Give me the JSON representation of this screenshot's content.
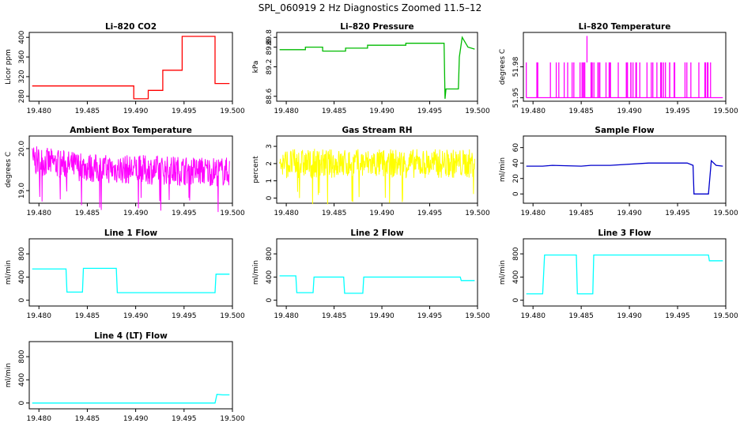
{
  "title": "SPL_060919  2 Hz Diagnostics Zoomed 11.5–12",
  "chart_data": [
    {
      "type": "line",
      "title": "Li–820 CO2",
      "ylabel": "Licor ppm",
      "color": "#ff0000",
      "xlim": [
        19.479,
        19.5
      ],
      "ylim": [
        270,
        410
      ],
      "xticks": [
        "19.480",
        "19.485",
        "19.490",
        "19.495",
        "19.500"
      ],
      "yticks": [
        "280",
        "320",
        "360",
        "400"
      ],
      "x": [
        19.4793,
        19.4898,
        19.4898,
        19.4913,
        19.4913,
        19.4928,
        19.4928,
        19.4948,
        19.4948,
        19.4982,
        19.4982,
        19.4997
      ],
      "y": [
        301,
        301,
        275,
        275,
        292,
        292,
        333,
        333,
        402,
        402,
        306,
        306
      ]
    },
    {
      "type": "line",
      "title": "Li–820 Pressure",
      "ylabel": "kPa",
      "color": "#00bb00",
      "xlim": [
        19.479,
        19.5
      ],
      "ylim": [
        88.5,
        89.9
      ],
      "xticks": [
        "19.480",
        "19.485",
        "19.490",
        "19.495",
        "19.500"
      ],
      "yticks": [
        "88.6",
        "89.2",
        "89.6",
        "89.8"
      ],
      "x": [
        19.4793,
        19.482,
        19.482,
        19.4838,
        19.4838,
        19.4862,
        19.4862,
        19.4885,
        19.4885,
        19.4925,
        19.4925,
        19.4965,
        19.4966,
        19.4967,
        19.498,
        19.4981,
        19.4984,
        19.499,
        19.4997
      ],
      "y": [
        89.55,
        89.55,
        89.6,
        89.6,
        89.52,
        89.52,
        89.58,
        89.58,
        89.64,
        89.64,
        89.68,
        89.68,
        88.55,
        88.75,
        88.75,
        89.4,
        89.8,
        89.6,
        89.56
      ]
    },
    {
      "type": "line",
      "title": "Li–820 Temperature",
      "ylabel": "degrees C",
      "color": "#ff00ff",
      "xlim": [
        19.479,
        19.5
      ],
      "ylim": [
        51.948,
        51.987
      ],
      "xticks": [
        "19.480",
        "19.485",
        "19.490",
        "19.495",
        "19.500"
      ],
      "yticks": [
        "51.95",
        "51.98",
        "51.98"
      ],
      "x": [
        19.4793,
        19.4997
      ],
      "y": [
        51.95,
        51.95
      ],
      "spikes": {
        "to": 51.97,
        "count": 64,
        "max_at": 19.4856,
        "max": 51.985
      }
    },
    {
      "type": "line",
      "title": "Ambient Box Temperature",
      "ylabel": "degrees C",
      "color": "#ff00ff",
      "xlim": [
        19.479,
        19.5
      ],
      "ylim": [
        18.7,
        20.3
      ],
      "xticks": [
        "19.480",
        "19.485",
        "19.490",
        "19.495",
        "19.500"
      ],
      "yticks": [
        "19.0",
        "20.0"
      ],
      "band": [
        [
          19.4793,
          19.72,
          0.35
        ],
        [
          19.486,
          19.52,
          0.35
        ],
        [
          19.4997,
          19.45,
          0.35
        ]
      ]
    },
    {
      "type": "line",
      "title": "Gas Stream RH",
      "ylabel": "percent",
      "color": "#ffff00",
      "xlim": [
        19.479,
        19.5
      ],
      "ylim": [
        -0.3,
        3.6
      ],
      "xticks": [
        "19.480",
        "19.485",
        "19.490",
        "19.495",
        "19.500"
      ],
      "yticks": [
        "0",
        "1",
        "2",
        "3"
      ],
      "band": [
        [
          19.4793,
          2.0,
          0.85
        ],
        [
          19.4997,
          2.0,
          0.85
        ]
      ]
    },
    {
      "type": "line",
      "title": "Sample Flow",
      "ylabel": "ml/min",
      "color": "#0000cc",
      "xlim": [
        19.479,
        19.5
      ],
      "ylim": [
        -12,
        75
      ],
      "xticks": [
        "19.480",
        "19.485",
        "19.490",
        "19.495",
        "19.500"
      ],
      "yticks": [
        "0",
        "20",
        "40",
        "60"
      ],
      "x": [
        19.4793,
        19.481,
        19.482,
        19.485,
        19.486,
        19.488,
        19.492,
        19.496,
        19.4966,
        19.4967,
        19.4982,
        19.4985,
        19.499,
        19.4997
      ],
      "y": [
        36,
        36,
        37,
        36,
        37,
        37,
        40,
        40,
        37,
        0,
        0,
        43,
        37,
        36
      ]
    },
    {
      "type": "line",
      "title": "Line 1 Flow",
      "ylabel": "ml/min",
      "color": "#00ffff",
      "xlim": [
        19.479,
        19.5
      ],
      "ylim": [
        -100,
        1060
      ],
      "xticks": [
        "19.480",
        "19.485",
        "19.490",
        "19.495",
        "19.500"
      ],
      "yticks": [
        "0",
        "400",
        "800"
      ],
      "x": [
        19.4793,
        19.4828,
        19.4829,
        19.4845,
        19.4846,
        19.488,
        19.4881,
        19.4982,
        19.4983,
        19.4997
      ],
      "y": [
        540,
        540,
        140,
        140,
        550,
        550,
        130,
        130,
        450,
        450
      ]
    },
    {
      "type": "line",
      "title": "Line 2 Flow",
      "ylabel": "ml/min",
      "color": "#00ffff",
      "xlim": [
        19.479,
        19.5
      ],
      "ylim": [
        -100,
        1060
      ],
      "xticks": [
        "19.480",
        "19.485",
        "19.490",
        "19.495",
        "19.500"
      ],
      "yticks": [
        "0",
        "400",
        "800"
      ],
      "x": [
        19.4793,
        19.481,
        19.4811,
        19.4828,
        19.4829,
        19.486,
        19.4861,
        19.488,
        19.4881,
        19.4982,
        19.4983,
        19.4997
      ],
      "y": [
        420,
        420,
        130,
        130,
        400,
        400,
        120,
        120,
        400,
        400,
        340,
        340
      ]
    },
    {
      "type": "line",
      "title": "Line 3 Flow",
      "ylabel": "ml/min",
      "color": "#00ffff",
      "xlim": [
        19.479,
        19.5
      ],
      "ylim": [
        -100,
        1060
      ],
      "xticks": [
        "19.480",
        "19.485",
        "19.490",
        "19.495",
        "19.500"
      ],
      "yticks": [
        "0",
        "400",
        "800"
      ],
      "x": [
        19.4793,
        19.481,
        19.4812,
        19.4845,
        19.4846,
        19.4862,
        19.4863,
        19.4982,
        19.4983,
        19.4997
      ],
      "y": [
        110,
        110,
        780,
        780,
        110,
        110,
        780,
        780,
        680,
        680
      ]
    },
    {
      "type": "line",
      "title": "Line 4 (LT) Flow",
      "ylabel": "ml/min",
      "color": "#00ffff",
      "xlim": [
        19.479,
        19.5
      ],
      "ylim": [
        -100,
        1060
      ],
      "xticks": [
        "19.480",
        "19.485",
        "19.490",
        "19.495",
        "19.500"
      ],
      "yticks": [
        "0",
        "400",
        "800"
      ],
      "x": [
        19.4793,
        19.4982,
        19.4984,
        19.499,
        19.4997
      ],
      "y": [
        0,
        0,
        150,
        140,
        140
      ]
    }
  ]
}
